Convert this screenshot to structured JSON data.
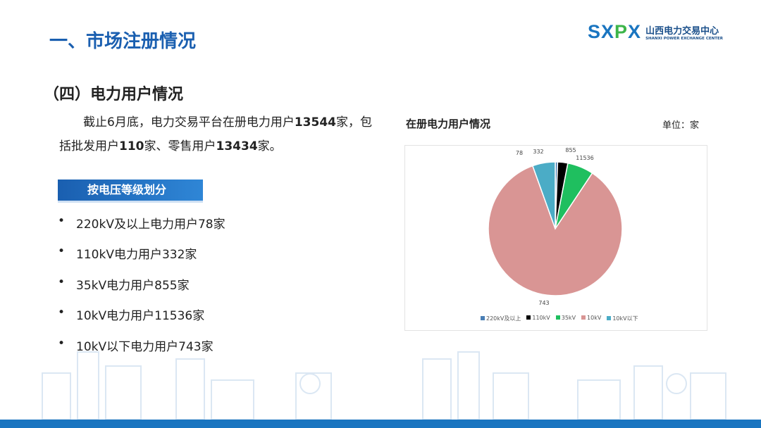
{
  "header": {
    "title": "一、市场注册情况",
    "logo": {
      "mark": "SXPX",
      "name_cn": "山西电力交易中心",
      "name_en": "SHANXI POWER EXCHANGE CENTER"
    }
  },
  "section": {
    "subtitle": "（四）电力用户情况",
    "paragraph": {
      "p1": "截止6月底，电力交易平台在册电力用户",
      "total": "13544",
      "p2": "家，包括批发用户",
      "wholesale": "110",
      "p3": "家、零售用户",
      "retail": "13434",
      "p4": "家。"
    },
    "tag": "按电压等级划分",
    "bullets": [
      "220kV及以上电力用户78家",
      "110kV电力用户332家",
      "35kV电力用户855家",
      "10kV电力用户11536家",
      "10kV以下电力用户743家"
    ]
  },
  "chart_data": {
    "type": "pie",
    "title": "在册电力用户情况",
    "unit": "单位：家",
    "categories": [
      "220kV及以上",
      "110kV",
      "35kV",
      "10kV",
      "10kV以下"
    ],
    "values": [
      78,
      332,
      855,
      11536,
      743
    ],
    "colors": [
      "#4a7fb5",
      "#000000",
      "#1fbf5f",
      "#d99594",
      "#4bacc6"
    ],
    "legend": "bottom"
  }
}
